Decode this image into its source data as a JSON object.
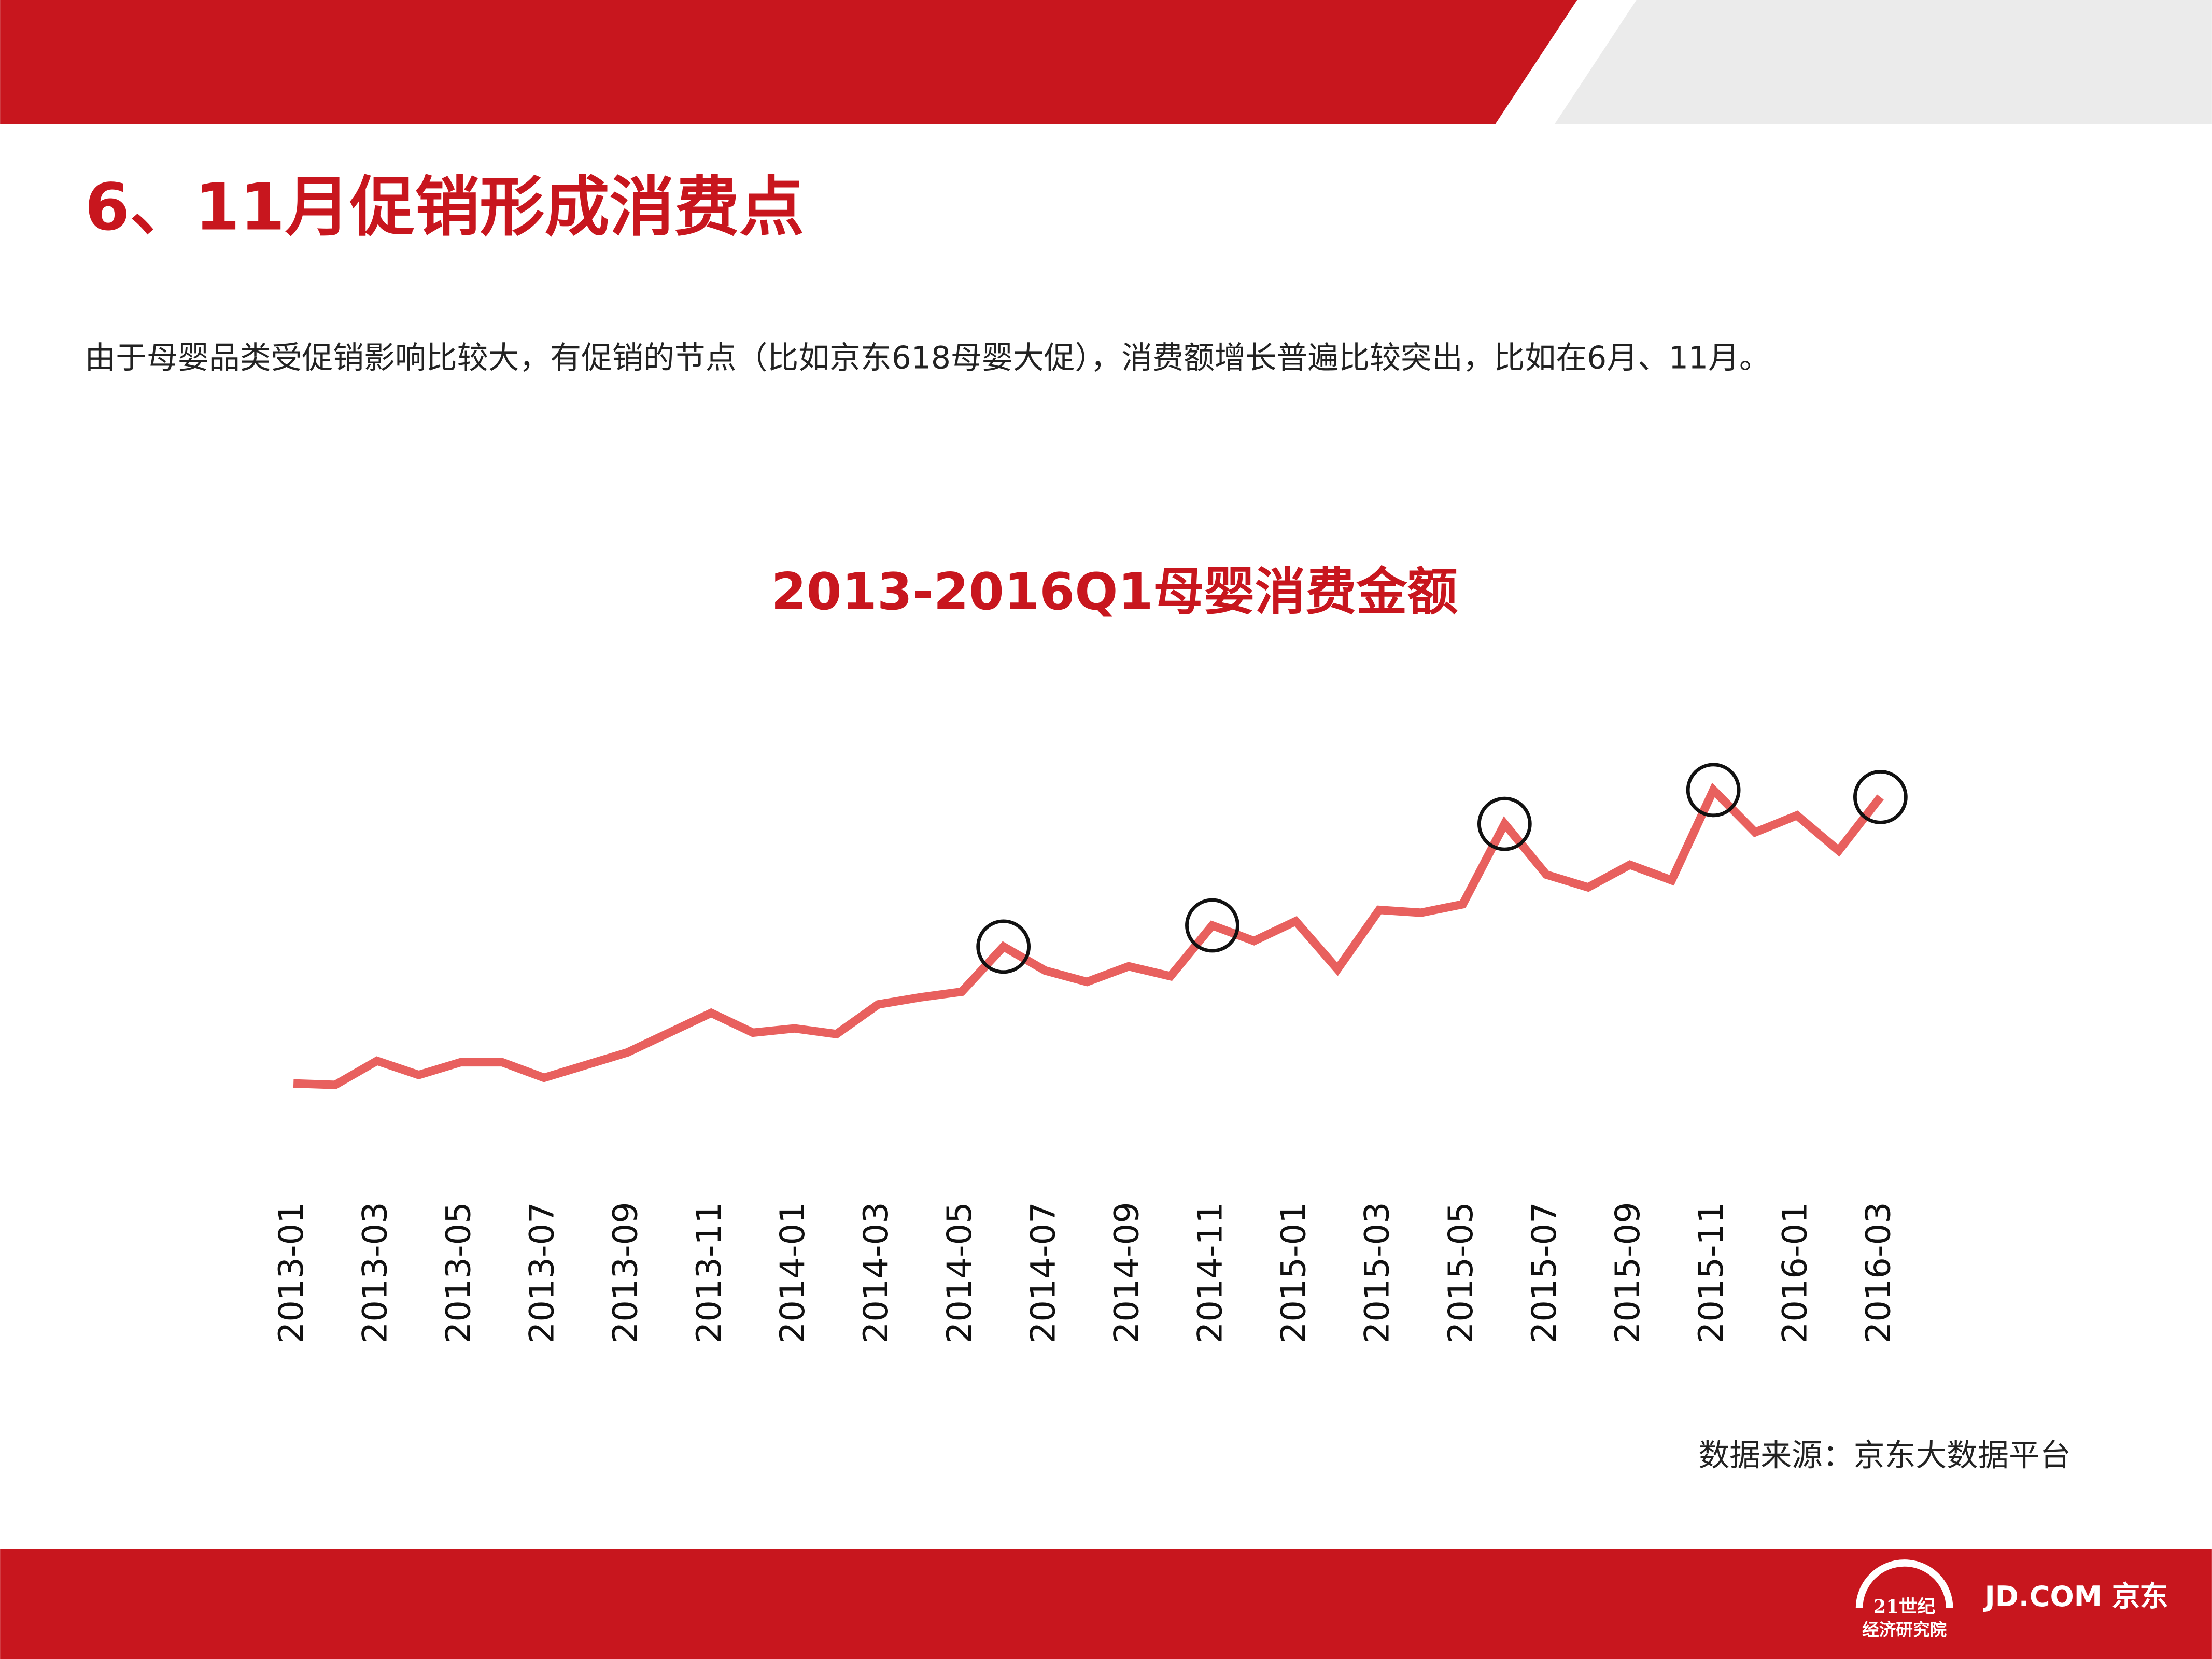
{
  "header": {
    "title": "6、11月促销形成消费点",
    "subtitle": "由于母婴品类受促销影响比较大，有促销的节点（比如京东618母婴大促），消费额增长普遍比较突出，比如在6月、11月。"
  },
  "chart_data": {
    "type": "line",
    "title": "2013-2016Q1母婴消费金额",
    "categories": [
      "2013-01",
      null,
      "2013-03",
      null,
      "2013-05",
      null,
      "2013-07",
      null,
      "2013-09",
      null,
      "2013-11",
      null,
      "2014-01",
      null,
      "2014-03",
      null,
      "2014-05",
      null,
      "2014-07",
      null,
      "2014-09",
      null,
      "2014-11",
      null,
      "2015-01",
      null,
      "2015-03",
      null,
      "2015-05",
      null,
      "2015-07",
      null,
      "2015-09",
      null,
      "2015-11",
      null,
      "2016-01",
      null,
      "2016-03"
    ],
    "series": [
      {
        "name": "母婴消费金额",
        "color": "#e8605e",
        "values": [
          32,
          31,
          48,
          38,
          47,
          47,
          36,
          45,
          54,
          68,
          82,
          68,
          71,
          67,
          88,
          93,
          97,
          129,
          112,
          104,
          115,
          108,
          144,
          133,
          147,
          113,
          155,
          153,
          159,
          216,
          180,
          171,
          187,
          176,
          240,
          210,
          222,
          197,
          235
        ]
      }
    ],
    "ylim": [
      0,
      300
    ]
  },
  "footer": {
    "source": "数据来源：京东大数据平台",
    "logo_left_top": "21世纪",
    "logo_left_bottom": "经济研究院",
    "logo_right": "JD.COM 京东"
  }
}
